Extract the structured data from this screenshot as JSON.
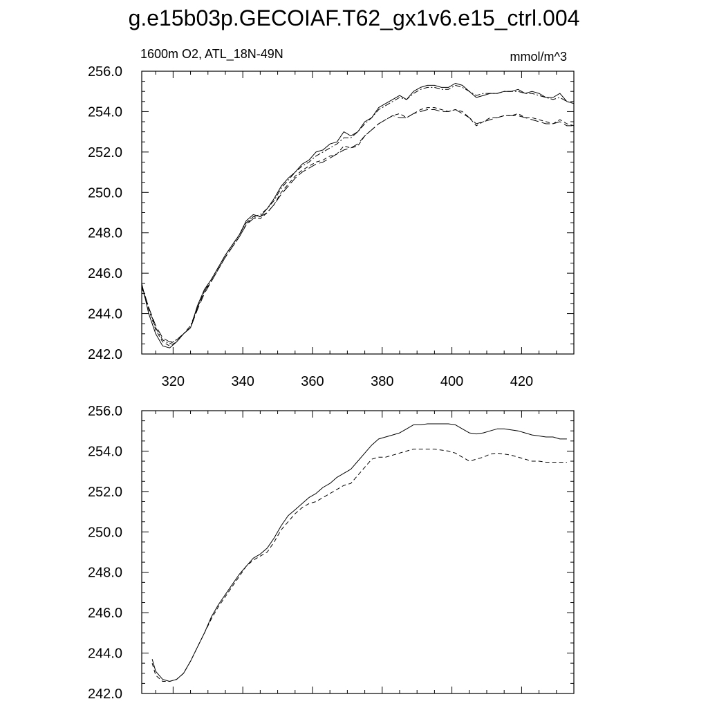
{
  "figure": {
    "title": "g.e15b03p.GECOIAF.T62_gx1v6.e15_ctrl.004"
  },
  "chart_data": [
    {
      "type": "line",
      "left_label": "1600m O2, ATL_18N-49N",
      "right_label": "mmol/m^3",
      "xlim": [
        311,
        435
      ],
      "ylim": [
        242,
        256
      ],
      "x_ticks": [
        320,
        340,
        360,
        380,
        400,
        420
      ],
      "x_tick_labels": [
        "320",
        "340",
        "360",
        "380",
        "400",
        "420"
      ],
      "y_ticks": [
        242,
        244,
        246,
        248,
        250,
        252,
        254,
        256
      ],
      "y_tick_labels": [
        "242.0",
        "244.0",
        "246.0",
        "248.0",
        "250.0",
        "252.0",
        "254.0",
        "256.0"
      ],
      "grid": false,
      "series": [
        {
          "style": "solid",
          "x": [
            311,
            313,
            315,
            317,
            319,
            321,
            323,
            325,
            327,
            329,
            331,
            333,
            335,
            337,
            339,
            341,
            343,
            345,
            347,
            349,
            351,
            353,
            355,
            357,
            359,
            361,
            363,
            365,
            367,
            369,
            371,
            373,
            375,
            377,
            379,
            381,
            383,
            385,
            387,
            389,
            391,
            393,
            395,
            397,
            399,
            401,
            403,
            405,
            407,
            409,
            411,
            413,
            415,
            417,
            419,
            421,
            423,
            425,
            427,
            429,
            431,
            433,
            435
          ],
          "y": [
            245.5,
            244.0,
            243.0,
            242.4,
            242.3,
            242.6,
            243.0,
            243.3,
            244.4,
            245.2,
            245.7,
            246.3,
            246.9,
            247.4,
            247.9,
            248.6,
            248.9,
            248.8,
            249.2,
            249.7,
            250.3,
            250.7,
            251.0,
            251.4,
            251.6,
            252.0,
            252.1,
            252.4,
            252.5,
            253.0,
            252.8,
            253.0,
            253.5,
            253.7,
            254.2,
            254.4,
            254.6,
            254.8,
            254.6,
            255.0,
            255.2,
            255.3,
            255.3,
            255.2,
            255.2,
            255.4,
            255.3,
            255.0,
            254.7,
            254.8,
            254.9,
            254.9,
            255.0,
            255.0,
            255.1,
            254.9,
            255.0,
            254.9,
            254.7,
            254.7,
            254.9,
            254.5,
            254.4
          ]
        },
        {
          "style": "dashdot",
          "x": [
            311,
            313,
            315,
            317,
            319,
            321,
            323,
            325,
            327,
            329,
            331,
            333,
            335,
            337,
            339,
            341,
            343,
            345,
            347,
            349,
            351,
            353,
            355,
            357,
            359,
            361,
            363,
            365,
            367,
            369,
            371,
            373,
            375,
            377,
            379,
            381,
            383,
            385,
            387,
            389,
            391,
            393,
            395,
            397,
            399,
            401,
            403,
            405,
            407,
            409,
            411,
            413,
            415,
            417,
            419,
            421,
            423,
            425,
            427,
            429,
            431,
            433,
            435
          ],
          "y": [
            245.4,
            244.3,
            243.3,
            242.7,
            242.5,
            242.7,
            243.0,
            243.4,
            244.3,
            245.1,
            245.7,
            246.3,
            246.9,
            247.4,
            247.9,
            248.5,
            248.8,
            248.9,
            249.2,
            249.6,
            250.2,
            250.6,
            251.0,
            251.3,
            251.5,
            251.8,
            252.0,
            252.2,
            252.4,
            252.7,
            252.7,
            253.0,
            253.4,
            253.7,
            254.1,
            254.3,
            254.5,
            254.7,
            254.6,
            254.9,
            255.1,
            255.2,
            255.2,
            255.1,
            255.1,
            255.3,
            255.2,
            255.0,
            254.8,
            254.9,
            254.9,
            254.9,
            255.0,
            255.0,
            255.0,
            254.9,
            254.9,
            254.8,
            254.7,
            254.6,
            254.7,
            254.5,
            254.4
          ]
        },
        {
          "style": "dashed",
          "x": [
            311,
            313,
            315,
            317,
            319,
            321,
            323,
            325,
            327,
            329,
            331,
            333,
            335,
            337,
            339,
            341,
            343,
            345,
            347,
            349,
            351,
            353,
            355,
            357,
            359,
            361,
            363,
            365,
            367,
            369,
            371,
            373,
            375,
            377,
            379,
            381,
            383,
            385,
            387,
            389,
            391,
            393,
            395,
            397,
            399,
            401,
            403,
            405,
            407,
            409,
            411,
            413,
            415,
            417,
            419,
            421,
            423,
            425,
            427,
            429,
            431,
            433,
            435
          ],
          "y": [
            245.3,
            244.2,
            243.2,
            242.6,
            242.4,
            242.6,
            243.0,
            243.3,
            244.3,
            245.1,
            245.6,
            246.2,
            246.8,
            247.3,
            247.8,
            248.4,
            248.8,
            248.7,
            249.0,
            249.4,
            250.0,
            250.4,
            250.8,
            251.1,
            251.3,
            251.5,
            251.6,
            251.8,
            251.9,
            252.3,
            252.2,
            252.3,
            252.8,
            253.1,
            253.4,
            253.6,
            253.8,
            253.9,
            253.7,
            253.9,
            254.1,
            254.2,
            254.2,
            254.1,
            254.0,
            254.1,
            254.0,
            253.7,
            253.3,
            253.5,
            253.7,
            253.7,
            253.8,
            253.8,
            253.9,
            253.7,
            253.7,
            253.6,
            253.5,
            253.4,
            253.6,
            253.4,
            253.3
          ]
        },
        {
          "style": "longdash",
          "x": [
            311,
            313,
            315,
            317,
            319,
            321,
            323,
            325,
            327,
            329,
            331,
            333,
            335,
            337,
            339,
            341,
            343,
            345,
            347,
            349,
            351,
            353,
            355,
            357,
            359,
            361,
            363,
            365,
            367,
            369,
            371,
            373,
            375,
            377,
            379,
            381,
            383,
            385,
            387,
            389,
            391,
            393,
            395,
            397,
            399,
            401,
            403,
            405,
            407,
            409,
            411,
            413,
            415,
            417,
            419,
            421,
            423,
            425,
            427,
            429,
            431,
            433,
            435
          ],
          "y": [
            245.4,
            244.3,
            243.4,
            242.8,
            242.6,
            242.7,
            243.0,
            243.3,
            244.2,
            245.0,
            245.6,
            246.2,
            246.8,
            247.3,
            247.8,
            248.4,
            248.7,
            248.8,
            249.0,
            249.4,
            249.9,
            250.3,
            250.7,
            251.0,
            251.2,
            251.4,
            251.5,
            251.7,
            251.9,
            252.1,
            252.2,
            252.4,
            252.8,
            253.1,
            253.4,
            253.6,
            253.8,
            253.7,
            253.7,
            253.9,
            254.0,
            254.1,
            254.1,
            254.0,
            254.0,
            254.1,
            253.9,
            253.7,
            253.4,
            253.5,
            253.6,
            253.7,
            253.8,
            253.8,
            253.8,
            253.7,
            253.6,
            253.5,
            253.4,
            253.4,
            253.5,
            253.3,
            253.3
          ]
        }
      ]
    },
    {
      "type": "line",
      "xlim": [
        311,
        435
      ],
      "ylim": [
        242,
        256
      ],
      "x_ticks": [
        320,
        340,
        360,
        380,
        400,
        420
      ],
      "x_tick_labels": [],
      "y_ticks": [
        242,
        244,
        246,
        248,
        250,
        252,
        254,
        256
      ],
      "y_tick_labels": [
        "242.0",
        "244.0",
        "246.0",
        "248.0",
        "250.0",
        "252.0",
        "254.0",
        "256.0"
      ],
      "grid": false,
      "series": [
        {
          "style": "solid",
          "x": [
            314,
            315,
            317,
            319,
            321,
            323,
            325,
            327,
            329,
            331,
            333,
            335,
            337,
            339,
            341,
            343,
            345,
            347,
            349,
            351,
            353,
            355,
            357,
            359,
            361,
            363,
            365,
            367,
            369,
            371,
            373,
            375,
            377,
            379,
            381,
            383,
            385,
            387,
            389,
            391,
            393,
            395,
            397,
            399,
            401,
            403,
            405,
            407,
            409,
            411,
            413,
            415,
            417,
            419,
            421,
            423,
            425,
            427,
            429,
            431,
            433
          ],
          "y": [
            243.7,
            243.1,
            242.7,
            242.6,
            242.7,
            243.0,
            243.6,
            244.3,
            245.0,
            245.8,
            246.4,
            246.9,
            247.4,
            247.9,
            248.3,
            248.7,
            248.9,
            249.2,
            249.7,
            250.3,
            250.8,
            251.1,
            251.4,
            251.7,
            251.9,
            252.2,
            252.4,
            252.7,
            252.9,
            253.1,
            253.5,
            253.9,
            254.3,
            254.6,
            254.7,
            254.8,
            254.9,
            255.1,
            255.3,
            255.3,
            255.35,
            255.35,
            255.35,
            255.35,
            255.3,
            255.1,
            254.9,
            254.85,
            254.9,
            255.0,
            255.1,
            255.1,
            255.05,
            255.0,
            254.9,
            254.8,
            254.75,
            254.7,
            254.7,
            254.6,
            254.6
          ]
        },
        {
          "style": "dashed",
          "x": [
            314,
            315,
            317,
            319,
            321,
            323,
            325,
            327,
            329,
            331,
            333,
            335,
            337,
            339,
            341,
            343,
            345,
            347,
            349,
            351,
            353,
            355,
            357,
            359,
            361,
            363,
            365,
            367,
            369,
            371,
            373,
            375,
            377,
            379,
            381,
            383,
            385,
            387,
            389,
            391,
            393,
            395,
            397,
            399,
            401,
            403,
            405,
            407,
            409,
            411,
            413,
            415,
            417,
            419,
            421,
            423,
            425,
            427,
            429,
            431,
            433
          ],
          "y": [
            243.5,
            242.9,
            242.6,
            242.6,
            242.7,
            243.0,
            243.6,
            244.3,
            245.0,
            245.7,
            246.3,
            246.8,
            247.3,
            247.8,
            248.3,
            248.6,
            248.8,
            249.0,
            249.5,
            250.1,
            250.5,
            250.9,
            251.2,
            251.4,
            251.5,
            251.7,
            251.9,
            252.1,
            252.3,
            252.4,
            252.8,
            253.2,
            253.6,
            253.7,
            253.7,
            253.8,
            253.9,
            254.0,
            254.1,
            254.1,
            254.1,
            254.1,
            254.05,
            254.0,
            253.9,
            253.7,
            253.5,
            253.6,
            253.7,
            253.85,
            253.9,
            253.85,
            253.8,
            253.7,
            253.6,
            253.5,
            253.5,
            253.45,
            253.45,
            253.45,
            253.45
          ]
        }
      ]
    }
  ]
}
